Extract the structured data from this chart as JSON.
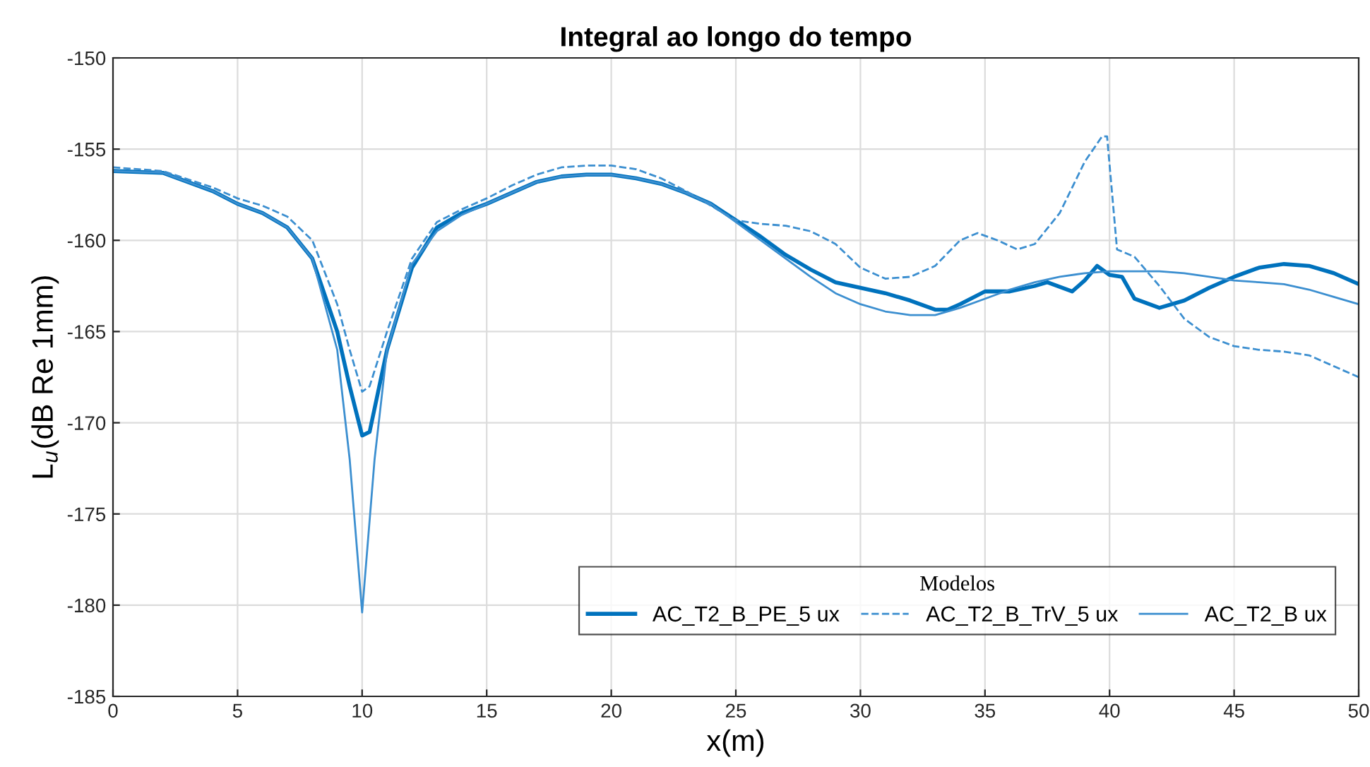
{
  "chart_data": {
    "type": "line",
    "title": "Integral ao longo do tempo",
    "xlabel": "x(m)",
    "ylabel": "L$_{u}$(dB Re 1mm)",
    "legend_title": "Modelos",
    "xlim": [
      0,
      50
    ],
    "ylim": [
      -185,
      -150
    ],
    "xticks": [
      0,
      5,
      10,
      15,
      20,
      25,
      30,
      35,
      40,
      45,
      50
    ],
    "yticks": [
      -185,
      -180,
      -175,
      -170,
      -165,
      -160,
      -155,
      -150
    ],
    "grid": true,
    "legend": "bottom right",
    "marker": "none",
    "series": [
      {
        "name": "AC_T2_B_PE_5 ux",
        "color": "#0072bd",
        "line_style": "solid",
        "x": [
          0,
          2,
          4,
          5,
          6,
          7,
          8,
          9,
          9.5,
          10,
          10.3,
          11,
          12,
          13,
          14,
          15,
          16,
          17,
          18,
          19,
          20,
          21,
          22,
          23,
          24,
          25,
          26,
          27,
          28,
          29,
          30,
          31,
          32,
          33,
          33.5,
          34,
          35,
          36,
          37,
          37.5,
          38.5,
          39,
          39.5,
          40,
          40.5,
          41,
          42,
          43,
          44,
          45,
          46,
          47,
          48,
          49,
          50
        ],
        "values": [
          -156.2,
          -156.3,
          -157.3,
          -158.0,
          -158.5,
          -159.3,
          -161,
          -165,
          -168,
          -170.7,
          -170.5,
          -166,
          -161.5,
          -159.3,
          -158.5,
          -158,
          -157.4,
          -156.8,
          -156.5,
          -156.4,
          -156.4,
          -156.6,
          -156.9,
          -157.4,
          -158,
          -158.9,
          -159.8,
          -160.8,
          -161.6,
          -162.3,
          -162.6,
          -162.9,
          -163.3,
          -163.8,
          -163.8,
          -163.5,
          -162.8,
          -162.8,
          -162.5,
          -162.3,
          -162.8,
          -162.2,
          -161.4,
          -161.9,
          -162,
          -163.2,
          -163.7,
          -163.3,
          -162.6,
          -162,
          -161.5,
          -161.3,
          -161.4,
          -161.8,
          -162.4
        ]
      },
      {
        "name": "AC_T2_B_TrV_5 ux",
        "color": "#3c8fd0",
        "line_style": "dashed",
        "x": [
          0,
          2,
          4,
          5,
          6,
          7,
          8,
          9,
          9.5,
          10,
          10.3,
          11,
          12,
          13,
          14,
          15,
          16,
          17,
          18,
          19,
          20,
          21,
          22,
          23,
          24,
          25,
          26,
          27,
          28,
          29,
          30,
          31,
          32,
          33,
          34,
          34.7,
          35.5,
          36.3,
          37,
          38,
          39,
          39.7,
          39.9,
          40.3,
          41,
          42,
          43,
          44,
          45,
          46,
          47,
          48,
          49,
          50
        ],
        "values": [
          -156.0,
          -156.2,
          -157.1,
          -157.7,
          -158.1,
          -158.7,
          -160,
          -163.5,
          -166,
          -168.3,
          -168,
          -165,
          -161,
          -159,
          -158.3,
          -157.7,
          -157,
          -156.4,
          -156,
          -155.9,
          -155.9,
          -156.1,
          -156.6,
          -157.3,
          -158.1,
          -158.9,
          -159.1,
          -159.2,
          -159.5,
          -160.2,
          -161.5,
          -162.1,
          -162,
          -161.4,
          -160,
          -159.6,
          -160,
          -160.5,
          -160.2,
          -158.5,
          -155.7,
          -154.3,
          -154.3,
          -160.5,
          -160.9,
          -162.5,
          -164.3,
          -165.3,
          -165.8,
          -166,
          -166.1,
          -166.3,
          -166.9,
          -167.5
        ]
      },
      {
        "name": "AC_T2_B ux",
        "color": "#3c8fd0",
        "line_style": "solid",
        "x": [
          0,
          2,
          4,
          5,
          6,
          7,
          8,
          9,
          9.5,
          10,
          10.5,
          11,
          12,
          13,
          14,
          15,
          16,
          17,
          18,
          19,
          20,
          21,
          22,
          23,
          24,
          25,
          27,
          28,
          29,
          30,
          31,
          32,
          33,
          34,
          35,
          36,
          37,
          38,
          39,
          40,
          42,
          43,
          44,
          45,
          46,
          47,
          48,
          49,
          50
        ],
        "values": [
          -156.2,
          -156.3,
          -157.3,
          -158.0,
          -158.5,
          -159.3,
          -161,
          -166,
          -172,
          -180.4,
          -172,
          -166,
          -161.3,
          -159.5,
          -158.6,
          -158,
          -157.4,
          -156.8,
          -156.5,
          -156.4,
          -156.4,
          -156.6,
          -156.9,
          -157.4,
          -158,
          -159,
          -161,
          -162,
          -162.9,
          -163.5,
          -163.9,
          -164.1,
          -164.1,
          -163.7,
          -163.2,
          -162.7,
          -162.3,
          -162.0,
          -161.8,
          -161.7,
          -161.7,
          -161.8,
          -162,
          -162.2,
          -162.3,
          -162.4,
          -162.7,
          -163.1,
          -163.5
        ]
      }
    ]
  }
}
